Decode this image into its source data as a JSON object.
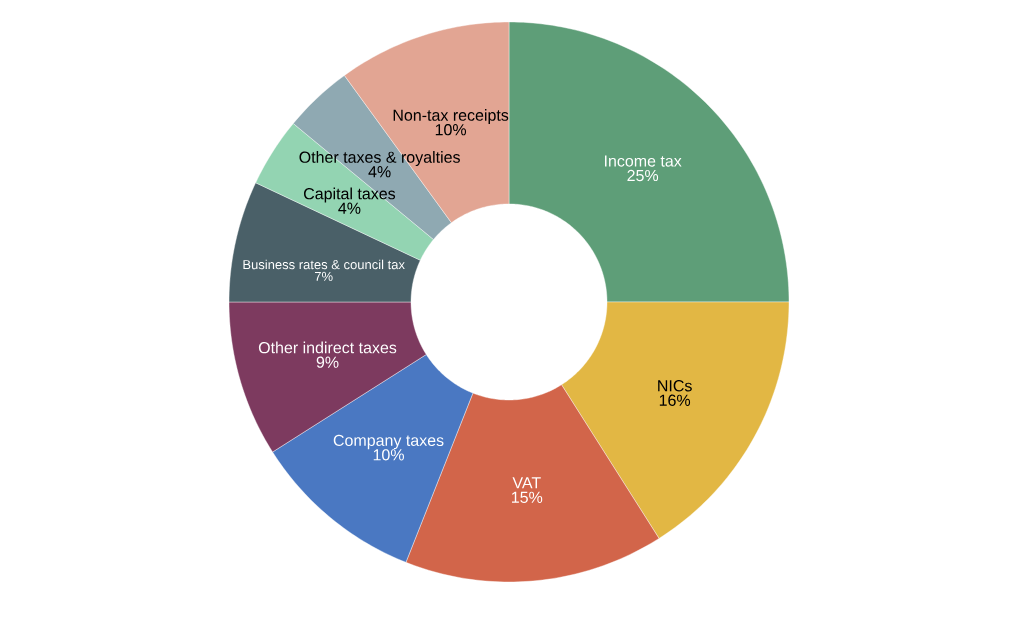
{
  "chart_data": {
    "type": "donut",
    "categories": [
      "Income tax",
      "NICs",
      "VAT",
      "Company taxes",
      "Other indirect taxes",
      "Business rates & council tax",
      "Capital taxes",
      "Other taxes & royalties",
      "Non-tax receipts"
    ],
    "values": [
      25,
      16,
      15,
      10,
      9,
      7,
      4,
      4,
      10
    ],
    "value_labels": [
      "25%",
      "16%",
      "15%",
      "10%",
      "9%",
      "7%",
      "4%",
      "4%",
      "10%"
    ],
    "colors": [
      "#5e9e78",
      "#e2b744",
      "#d2654a",
      "#4a78c2",
      "#7d3a5f",
      "#4a6068",
      "#93d4b2",
      "#8fa9b2",
      "#e2a593"
    ]
  }
}
